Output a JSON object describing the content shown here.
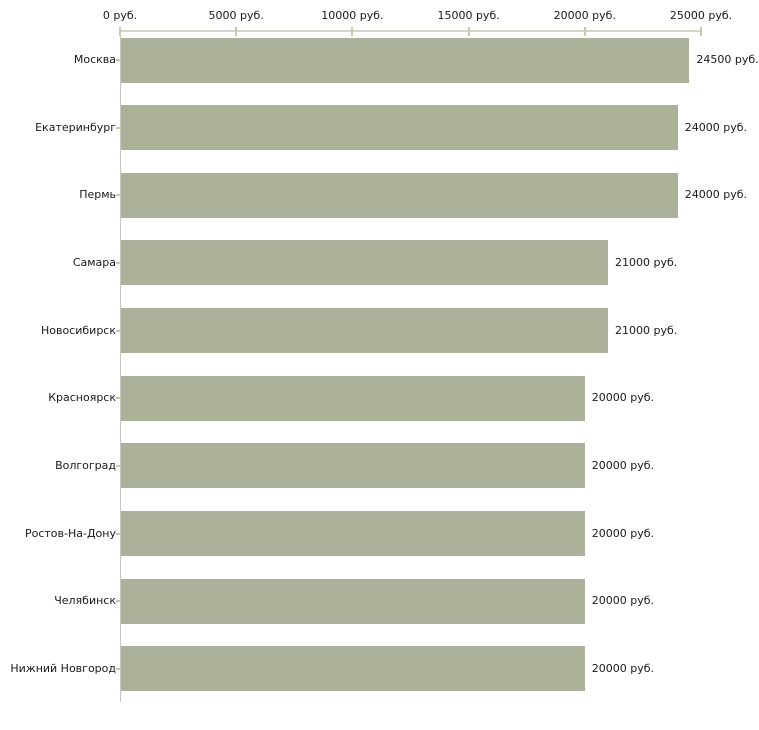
{
  "chart_data": {
    "type": "bar",
    "orientation": "horizontal",
    "categories": [
      "Москва",
      "Екатеринбург",
      "Пермь",
      "Самара",
      "Новосибирск",
      "Красноярск",
      "Волгоград",
      "Ростов-На-Дону",
      "Челябинск",
      "Нижний Новгород"
    ],
    "values": [
      24500,
      24000,
      24000,
      21000,
      21000,
      20000,
      20000,
      20000,
      20000,
      20000
    ],
    "bar_labels": [
      "24500 руб.",
      "24000 руб.",
      "24000 руб.",
      "21000 руб.",
      "21000 руб.",
      "20000 руб.",
      "20000 руб.",
      "20000 руб.",
      "20000 руб.",
      "20000 руб."
    ],
    "x_axis": {
      "position": "top",
      "xlim": [
        0,
        25000
      ],
      "ticks": [
        0,
        5000,
        10000,
        15000,
        20000,
        25000
      ],
      "tick_labels": [
        "0 руб.",
        "5000 руб.",
        "10000 руб.",
        "15000 руб.",
        "20000 руб.",
        "25000 руб."
      ]
    },
    "unit": "руб.",
    "grid": false,
    "legend": null,
    "colors": {
      "bar": "#acb299",
      "axis_line": "#d7d5cb",
      "tick": "#cbc8ad",
      "text": "#1a1a1a",
      "background": "#ffffff"
    }
  }
}
